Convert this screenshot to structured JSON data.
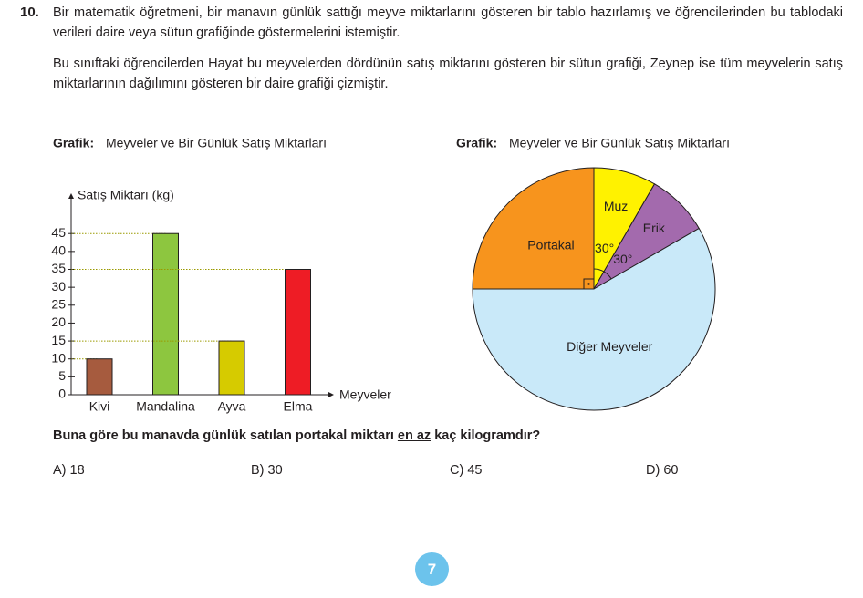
{
  "question_number": "10.",
  "paragraphs": [
    "Bir matematik öğretmeni, bir manavın günlük sattığı meyve miktarlarını gösteren bir tablo hazırlamış ve öğrencilerinden bu tablodaki verileri daire veya sütun grafiğinde göstermelerini istemiştir.",
    "Bu sınıftaki öğrencilerden Hayat bu meyvelerden dördünün satış miktarını gösteren bir sütun grafiği, Zeynep ise tüm meyvelerin satış miktarlarının dağılımını gösteren bir daire grafiği çizmiştir."
  ],
  "chart_data": [
    {
      "type": "bar",
      "title_label": "Grafik:",
      "title": "Meyveler ve Bir Günlük Satış Miktarları",
      "y_label": "Satış Miktarı (kg)",
      "x_label": "Meyveler",
      "categories": [
        "Kivi",
        "Mandalina",
        "Ayva",
        "Elma"
      ],
      "values": [
        10,
        45,
        15,
        35
      ],
      "colors": [
        "#a65b3e",
        "#8dc63f",
        "#d6cb00",
        "#ee1c25"
      ],
      "ylim": [
        0,
        56
      ],
      "yticks": [
        0,
        5,
        10,
        15,
        20,
        25,
        30,
        35,
        40,
        45
      ]
    },
    {
      "type": "pie",
      "title_label": "Grafik:",
      "title": "Meyveler ve Bir Günlük Satış Miktarları",
      "categories": [
        "Muz",
        "Erik",
        "Diğer Meyveler",
        "Portakal"
      ],
      "values": [
        30,
        30,
        210,
        90
      ],
      "value_labels": [
        "30°",
        "30°",
        null,
        null
      ],
      "colors": [
        "#fff200",
        "#a36aad",
        "#c9e9f9",
        "#f7941d"
      ]
    }
  ],
  "question_parts": [
    "Buna göre bu manavda günlük satılan portakal miktarı ",
    "en az",
    " kaç kilogramdır?"
  ],
  "options": [
    "A) 18",
    "B) 30",
    "C) 45",
    "D) 60"
  ],
  "page_number": "7"
}
